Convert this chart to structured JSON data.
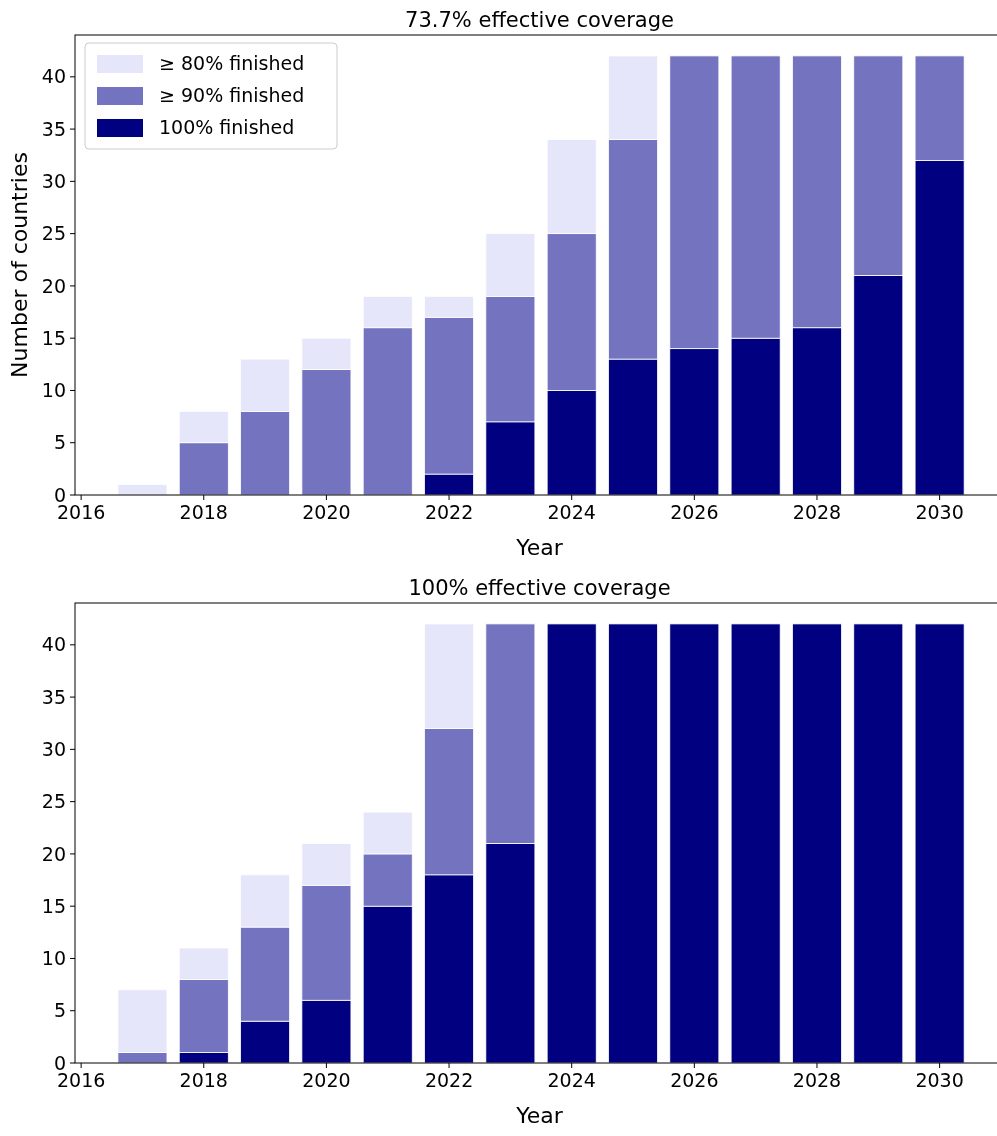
{
  "chart_data": [
    {
      "type": "bar",
      "stacked": true,
      "title": "73.7% effective coverage",
      "xlabel": "Year",
      "ylabel": "Number of countries",
      "x": [
        2017,
        2018,
        2019,
        2020,
        2021,
        2022,
        2023,
        2024,
        2025,
        2026,
        2027,
        2028,
        2029,
        2030
      ],
      "xlim": [
        2015.9,
        2031.05
      ],
      "xticks": [
        2016,
        2018,
        2020,
        2022,
        2024,
        2026,
        2028,
        2030
      ],
      "ylim": [
        0,
        44
      ],
      "yticks": [
        0,
        5,
        10,
        15,
        20,
        25,
        30,
        35,
        40
      ],
      "grid": false,
      "legend": "top left",
      "series": [
        {
          "name": "100% finished",
          "color": "#000080",
          "values": [
            0,
            0,
            0,
            0,
            0,
            2,
            7,
            10,
            13,
            14,
            15,
            16,
            21,
            32
          ]
        },
        {
          "name": "≥ 90% finished",
          "color": "#7373bf",
          "values": [
            0,
            5,
            8,
            12,
            16,
            15,
            12,
            15,
            21,
            28,
            27,
            26,
            21,
            10
          ]
        },
        {
          "name": "≥ 80% finished",
          "color": "#e6e6fa",
          "values": [
            1,
            3,
            5,
            3,
            3,
            2,
            6,
            9,
            8,
            0,
            0,
            0,
            0,
            0
          ]
        }
      ]
    },
    {
      "type": "bar",
      "stacked": true,
      "title": "100% effective coverage",
      "xlabel": "Year",
      "x": [
        2017,
        2018,
        2019,
        2020,
        2021,
        2022,
        2023,
        2024,
        2025,
        2026,
        2027,
        2028,
        2029,
        2030
      ],
      "xlim": [
        2015.9,
        2031.05
      ],
      "xticks": [
        2016,
        2018,
        2020,
        2022,
        2024,
        2026,
        2028,
        2030
      ],
      "ylim": [
        0,
        44
      ],
      "yticks": [
        0,
        5,
        10,
        15,
        20,
        25,
        30,
        35,
        40
      ],
      "grid": false,
      "series": [
        {
          "color": "#000080",
          "values": [
            0,
            1,
            4,
            6,
            15,
            18,
            21,
            42,
            42,
            42,
            42,
            42,
            42,
            42
          ]
        },
        {
          "color": "#7373bf",
          "values": [
            1,
            7,
            9,
            11,
            5,
            14,
            21,
            0,
            0,
            0,
            0,
            0,
            0,
            0
          ]
        },
        {
          "color": "#e6e6fa",
          "values": [
            6,
            3,
            5,
            4,
            4,
            10,
            0,
            0,
            0,
            0,
            0,
            0,
            0,
            0
          ]
        }
      ]
    }
  ]
}
